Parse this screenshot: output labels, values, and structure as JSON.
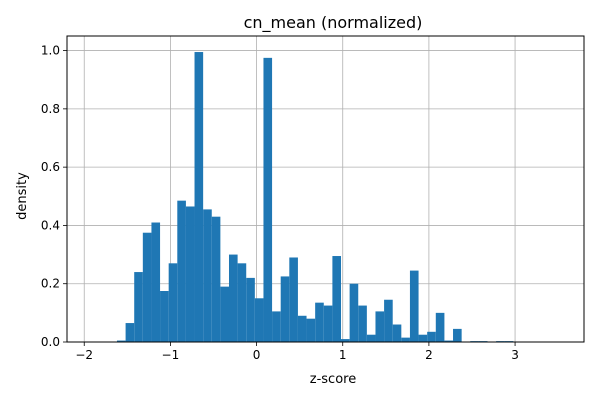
{
  "chart_data": {
    "type": "bar",
    "title": "cn_mean (normalized)",
    "xlabel": "z-score",
    "ylabel": "density",
    "xlim": [
      -2.2,
      3.8
    ],
    "ylim": [
      0,
      1.05
    ],
    "xticks": [
      -2,
      -1,
      0,
      1,
      2,
      3
    ],
    "xtick_labels": [
      "−2",
      "−1",
      "0",
      "1",
      "2",
      "3"
    ],
    "yticks": [
      0,
      0.2,
      0.4,
      0.6,
      0.8,
      1.0
    ],
    "ytick_labels": [
      "0.0",
      "0.2",
      "0.4",
      "0.6",
      "0.8",
      "1.0"
    ],
    "grid": true,
    "bar_color": "#1f77b4",
    "bin_start": -1.62,
    "bin_width": 0.1,
    "values": [
      0.005,
      0.065,
      0.24,
      0.375,
      0.41,
      0.175,
      0.27,
      0.485,
      0.465,
      0.995,
      0.455,
      0.43,
      0.19,
      0.3,
      0.27,
      0.22,
      0.15,
      0.975,
      0.105,
      0.225,
      0.29,
      0.09,
      0.08,
      0.135,
      0.125,
      0.295,
      0.01,
      0.2,
      0.125,
      0.025,
      0.105,
      0.145,
      0.06,
      0.015,
      0.245,
      0.025,
      0.035,
      0.1,
      0.005,
      0.045,
      0.0,
      0.003,
      0.003,
      0.0,
      0.003,
      0.003
    ]
  }
}
